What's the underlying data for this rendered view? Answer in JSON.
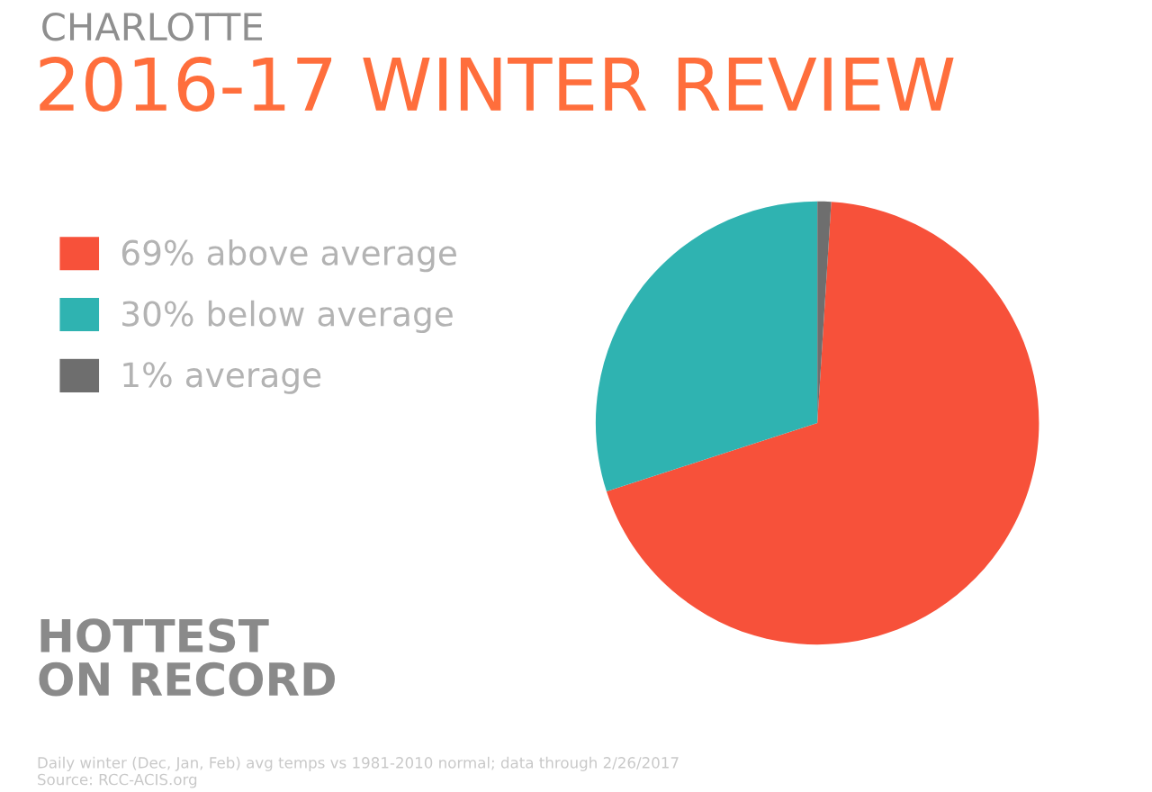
{
  "chart_data": {
    "type": "pie",
    "subtitle": "CHARLOTTE",
    "title": "2016-17 WINTER REVIEW",
    "categories": [
      "69% above average",
      "30% below average",
      "1% average"
    ],
    "values": [
      69,
      30,
      1
    ],
    "colors": [
      "#f7513a",
      "#2fb3b1",
      "#6e6e6e"
    ],
    "legend": "left",
    "annotations": [
      "HOTTEST\nON RECORD",
      "Daily winter (Dec, Jan, Feb) avg temps vs 1981-2010 normal; data through 2/26/2017\nSource: RCC-ACIS.org"
    ]
  }
}
